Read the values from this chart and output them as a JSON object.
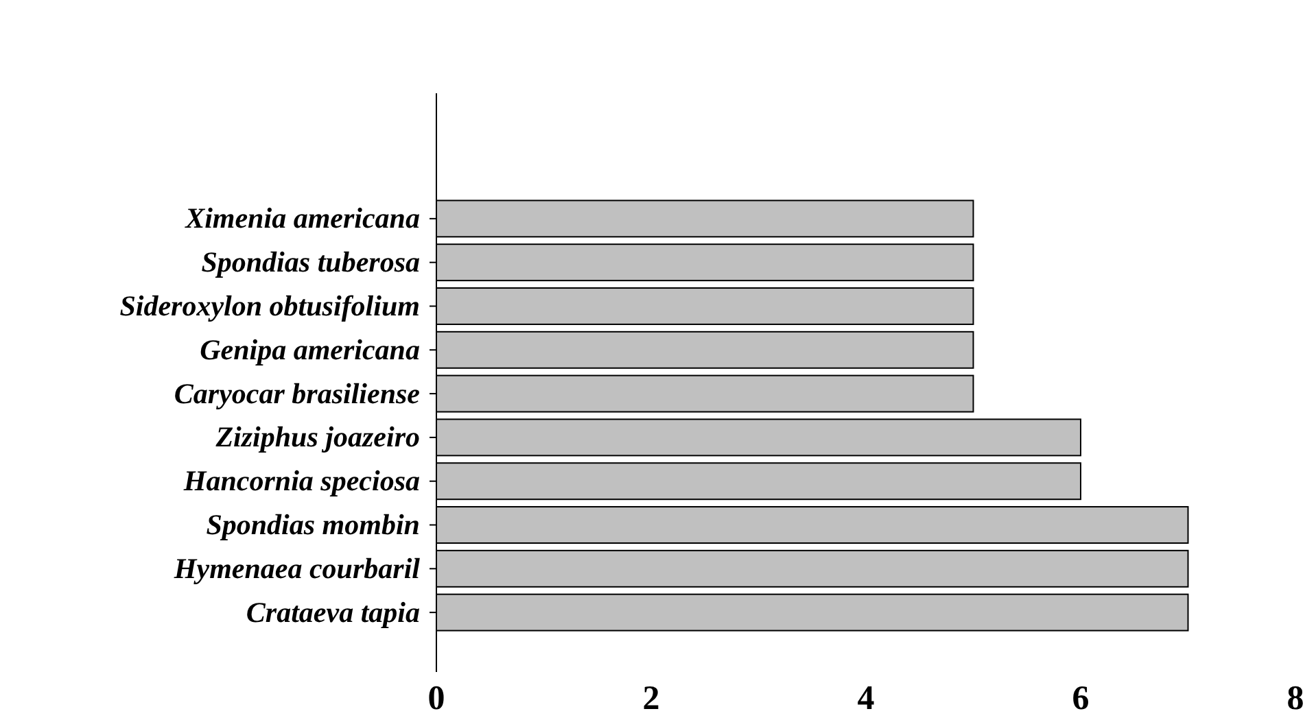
{
  "chart_data": {
    "type": "bar",
    "orientation": "horizontal",
    "categories": [
      "Ximenia americana",
      "Spondias tuberosa",
      "Sideroxylon obtusifolium",
      "Genipa americana",
      "Caryocar brasiliense",
      "Ziziphus joazeiro",
      "Hancornia speciosa",
      "Spondias mombin",
      "Hymenaea courbaril",
      "Crataeva tapia"
    ],
    "values": [
      5,
      5,
      5,
      5,
      5,
      6,
      6,
      7,
      7,
      7
    ],
    "color": "#c0c0c0",
    "xlim": [
      0,
      8
    ],
    "xticks": [
      0,
      2,
      4,
      6,
      8
    ],
    "grid": false
  }
}
